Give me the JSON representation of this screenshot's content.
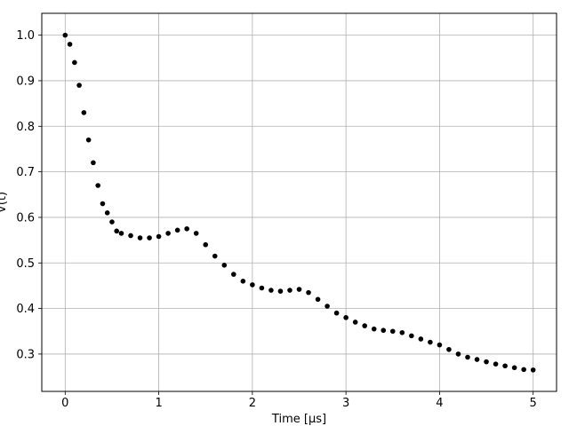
{
  "chart_data": {
    "type": "scatter",
    "title": "",
    "xlabel": "Time [μs]",
    "ylabel": "V(t)",
    "xlim": [
      -0.25,
      5.25
    ],
    "ylim": [
      0.218,
      1.048
    ],
    "xticks": [
      0,
      1,
      2,
      3,
      4,
      5
    ],
    "yticks": [
      0.3,
      0.4,
      0.5,
      0.6,
      0.7,
      0.8,
      0.9,
      1.0
    ],
    "xtick_labels": [
      "0",
      "1",
      "2",
      "3",
      "4",
      "5"
    ],
    "ytick_labels": [
      "0.3",
      "0.4",
      "0.5",
      "0.6",
      "0.7",
      "0.8",
      "0.9",
      "1.0"
    ],
    "grid": true,
    "marker_color": "#000000",
    "series": [
      {
        "x": [
          0.0,
          0.05,
          0.1,
          0.15,
          0.2,
          0.25,
          0.3,
          0.35,
          0.4,
          0.45,
          0.5,
          0.55,
          0.6,
          0.7,
          0.8,
          0.9,
          1.0,
          1.1,
          1.2,
          1.3,
          1.4,
          1.5,
          1.6,
          1.7,
          1.8,
          1.9,
          2.0,
          2.1,
          2.2,
          2.3,
          2.4,
          2.5,
          2.6,
          2.7,
          2.8,
          2.9,
          3.0,
          3.1,
          3.2,
          3.3,
          3.4,
          3.5,
          3.6,
          3.7,
          3.8,
          3.9,
          4.0,
          4.1,
          4.2,
          4.3,
          4.4,
          4.5,
          4.6,
          4.7,
          4.8,
          4.9,
          5.0
        ],
        "y": [
          1.0,
          0.98,
          0.94,
          0.89,
          0.83,
          0.77,
          0.72,
          0.67,
          0.63,
          0.61,
          0.59,
          0.57,
          0.565,
          0.56,
          0.555,
          0.555,
          0.558,
          0.565,
          0.572,
          0.575,
          0.565,
          0.54,
          0.515,
          0.495,
          0.475,
          0.46,
          0.452,
          0.445,
          0.44,
          0.438,
          0.44,
          0.442,
          0.435,
          0.42,
          0.405,
          0.39,
          0.38,
          0.37,
          0.362,
          0.355,
          0.352,
          0.35,
          0.347,
          0.34,
          0.333,
          0.326,
          0.32,
          0.31,
          0.3,
          0.293,
          0.288,
          0.283,
          0.278,
          0.274,
          0.27,
          0.266,
          0.265
        ]
      }
    ]
  }
}
